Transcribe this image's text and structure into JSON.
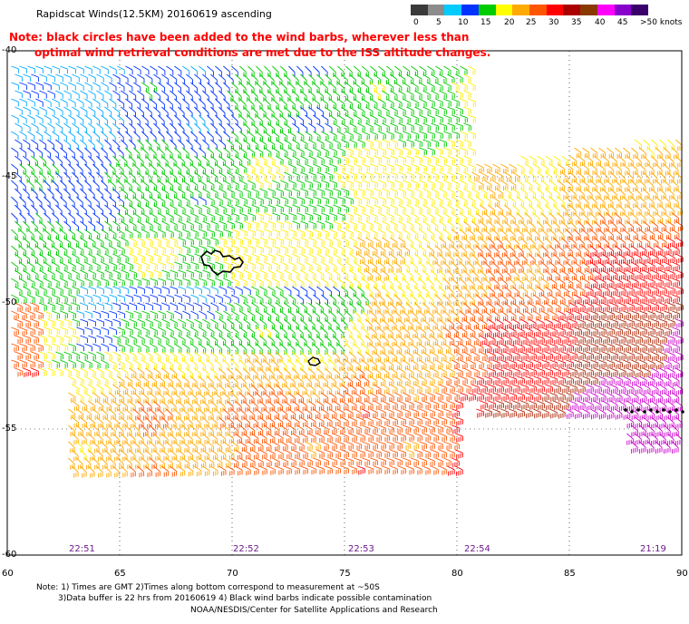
{
  "title": "Rapidscat Winds(12.5KM) 20160619 ascending",
  "note_line1": "Note: black circles have been added to the wind barbs, wherever less than",
  "note_line2": "optimal wind retrieval conditions are met due to the ISS altitude changes.",
  "legend": {
    "labels": [
      "0",
      "5",
      "10",
      "15",
      "20",
      "25",
      "30",
      "35",
      "40",
      "45",
      ">50 knots"
    ],
    "colors": [
      "#3a3a3a",
      "#8c8c8c",
      "#00ccff",
      "#0033ff",
      "#00cc00",
      "#ffff00",
      "#ffaa00",
      "#ff5500",
      "#ff0000",
      "#aa0000",
      "#8a3a00",
      "#ff00ff",
      "#8800cc",
      "#3a006a"
    ]
  },
  "lat_labels": [
    "-40",
    "-45",
    "-50",
    "-55",
    "-60"
  ],
  "lon_labels": [
    "60",
    "65",
    "70",
    "75",
    "80",
    "85",
    "90"
  ],
  "pass_times": [
    "22:51",
    "22:52",
    "22:53",
    "22:54",
    "21:19"
  ],
  "footer": {
    "line1": "Note: 1) Times are GMT 2)Times along bottom correspond to measurement at ~50S",
    "line2": "3)Data buffer is 22 hrs from 20160619 4) Black wind barbs indicate possible contamination",
    "line3": "NOAA/NESDIS/Center for Satellite Applications and Research"
  }
}
